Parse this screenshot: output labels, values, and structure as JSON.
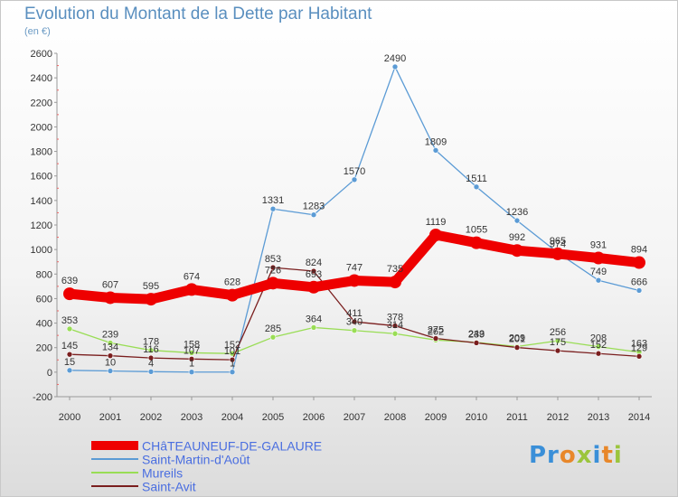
{
  "header": {
    "title": "Evolution du Montant de la Dette par Habitant",
    "unit": "(en €)"
  },
  "logo": {
    "text": "Proxiti"
  },
  "chart_data": {
    "type": "line",
    "title": "Evolution du Montant de la Dette par Habitant",
    "subtitle": "(en €)",
    "xlabel": "",
    "ylabel": "",
    "categories": [
      "2000",
      "2001",
      "2002",
      "2003",
      "2004",
      "2005",
      "2006",
      "2007",
      "2008",
      "2009",
      "2010",
      "2011",
      "2012",
      "2013",
      "2014"
    ],
    "ylim": [
      -200,
      2600
    ],
    "yticks": [
      -200,
      0,
      200,
      400,
      600,
      800,
      1000,
      1200,
      1400,
      1600,
      1800,
      2000,
      2200,
      2400,
      2600
    ],
    "grid": false,
    "legend": "bottom-left",
    "series": [
      {
        "name": "CHâTEAUNEUF-DE-GALAURE",
        "color": "#ee0000",
        "values": [
          639,
          607,
          595,
          674,
          628,
          726,
          693,
          747,
          735,
          1119,
          1055,
          992,
          965,
          931,
          894
        ],
        "labels": [
          "639",
          "607",
          "595",
          "674",
          "628",
          "726",
          "693",
          "747",
          "735",
          "1119",
          "1055",
          "992",
          "965",
          "931",
          "894"
        ]
      },
      {
        "name": "Saint-Martin-d'Août",
        "color": "#5b9bd5",
        "values": [
          15,
          10,
          4,
          1,
          1,
          1331,
          1283,
          1570,
          2490,
          1809,
          1511,
          1236,
          974,
          749,
          666
        ],
        "labels": [
          "15",
          "10",
          "4",
          "1",
          "1",
          "1331",
          "1283",
          "1570",
          "2490",
          "1809",
          "1511",
          "1236",
          "974",
          "749",
          "666"
        ]
      },
      {
        "name": "Mureils",
        "color": "#99dd55",
        "values": [
          353,
          239,
          178,
          158,
          152,
          285,
          364,
          340,
          314,
          262,
          243,
          209,
          256,
          208,
          163
        ],
        "labels": [
          "353",
          "239",
          "178",
          "158",
          "152",
          "285",
          "364",
          "340",
          "314",
          "262",
          "243",
          "209",
          "256",
          "208",
          "163"
        ]
      },
      {
        "name": "Saint-Avit",
        "color": "#7a1e1e",
        "values": [
          145,
          134,
          116,
          107,
          101,
          853,
          824,
          411,
          378,
          275,
          239,
          201,
          175,
          152,
          129
        ],
        "labels": [
          "145",
          "134",
          "116",
          "107",
          "101",
          "853",
          "824",
          "411",
          "378",
          "275",
          "239",
          "201",
          "175",
          "152",
          "129"
        ]
      }
    ]
  }
}
